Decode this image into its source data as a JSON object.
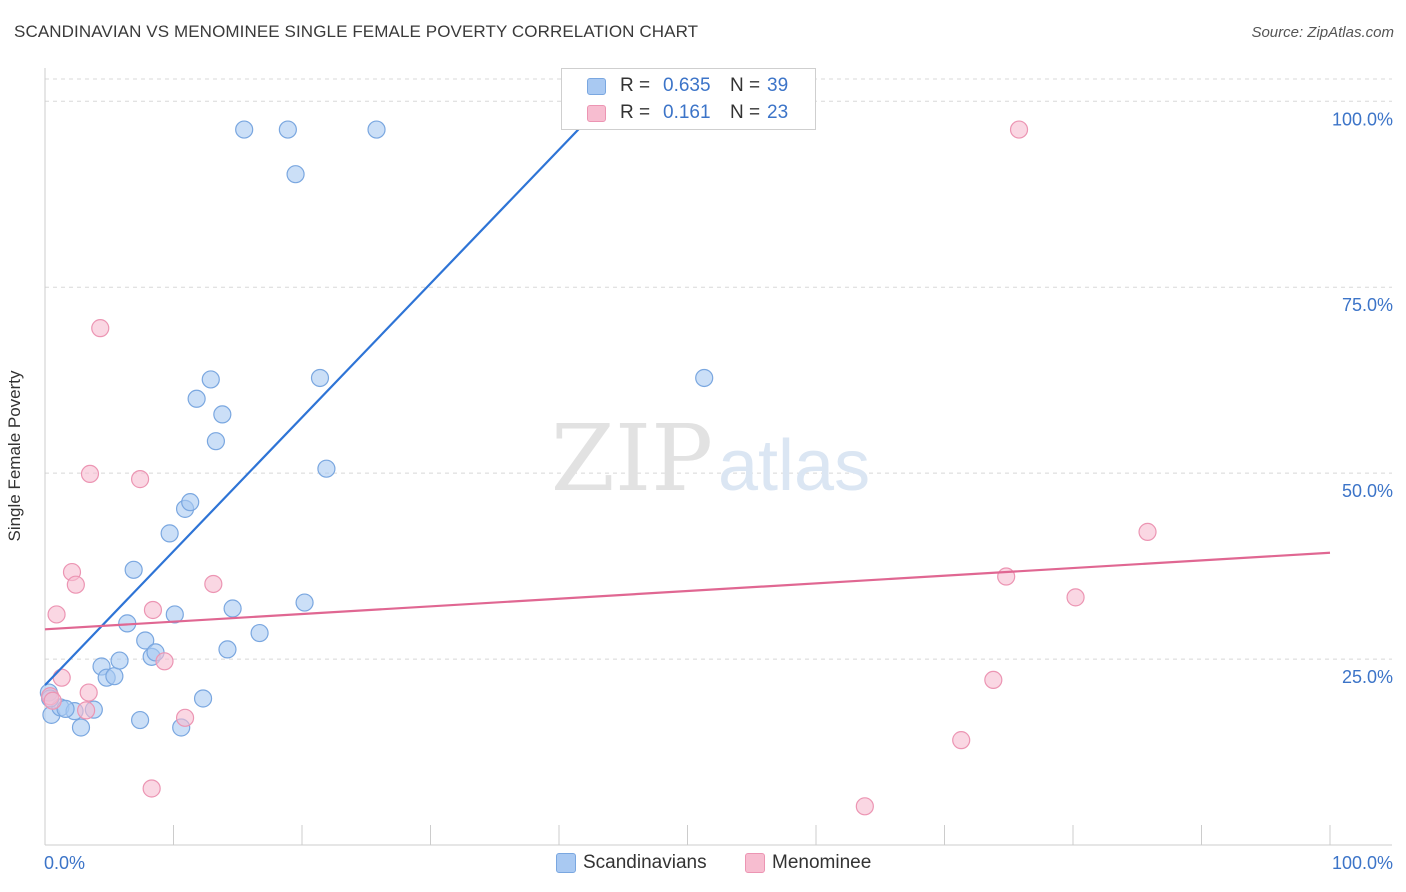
{
  "header": {
    "title": "SCANDINAVIAN VS MENOMINEE SINGLE FEMALE POVERTY CORRELATION CHART",
    "source": "Source: ZipAtlas.com"
  },
  "watermark": {
    "zip": "ZIP",
    "atlas": "atlas"
  },
  "stats": {
    "scandinavian": {
      "r_label": "R =",
      "r_value": "0.635",
      "n_label": "N =",
      "n_value": "39"
    },
    "menominee": {
      "r_label": "R =",
      "r_value": "0.161",
      "n_label": "N =",
      "n_value": "23"
    }
  },
  "legend": {
    "scandinavian": "Scandinavians",
    "menominee": "Menominee"
  },
  "colors": {
    "scandinavian_fill": "#a9c9f2",
    "scandinavian_stroke": "#7aa7e0",
    "scandinavian_line": "#2e74d6",
    "menominee_fill": "#f7bdd0",
    "menominee_stroke": "#ec95b3",
    "menominee_line": "#e06792",
    "axis_text": "#3c74c8",
    "grid": "#d8d8d8"
  },
  "chart_data": {
    "type": "scatter",
    "title": "SCANDINAVIAN VS MENOMINEE SINGLE FEMALE POVERTY CORRELATION CHART",
    "xlabel": "",
    "ylabel": "Single Female Poverty",
    "xlim": [
      0,
      100
    ],
    "ylim": [
      0,
      103
    ],
    "x_tick_labels": [
      "0.0%",
      "100.0%"
    ],
    "y_ticks": [
      25,
      50,
      75,
      100
    ],
    "y_tick_labels": [
      "25.0%",
      "50.0%",
      "75.0%",
      "100.0%"
    ],
    "grid": true,
    "series": [
      {
        "name": "Scandinavians",
        "r": 0.635,
        "n": 39,
        "trend": {
          "x0": 0,
          "y0": 21.5,
          "x1": 42.5,
          "y1": 98
        },
        "points": [
          [
            0.3,
            20.5
          ],
          [
            0.5,
            17.5
          ],
          [
            1.2,
            18.5
          ],
          [
            2.3,
            18.0
          ],
          [
            2.8,
            15.8
          ],
          [
            3.8,
            18.2
          ],
          [
            4.4,
            24.0
          ],
          [
            4.8,
            22.5
          ],
          [
            5.4,
            22.7
          ],
          [
            5.8,
            24.8
          ],
          [
            6.4,
            29.8
          ],
          [
            6.9,
            37.0
          ],
          [
            7.4,
            16.8
          ],
          [
            7.8,
            27.5
          ],
          [
            8.3,
            25.3
          ],
          [
            8.6,
            25.9
          ],
          [
            9.7,
            41.9
          ],
          [
            10.1,
            31.0
          ],
          [
            10.6,
            15.8
          ],
          [
            10.9,
            45.2
          ],
          [
            11.3,
            46.1
          ],
          [
            11.8,
            60.0
          ],
          [
            12.3,
            19.7
          ],
          [
            12.9,
            62.6
          ],
          [
            13.3,
            54.3
          ],
          [
            13.8,
            57.9
          ],
          [
            14.2,
            26.3
          ],
          [
            14.6,
            31.8
          ],
          [
            15.5,
            96.2
          ],
          [
            16.7,
            28.5
          ],
          [
            18.9,
            96.2
          ],
          [
            19.5,
            90.2
          ],
          [
            20.2,
            32.6
          ],
          [
            21.4,
            62.8
          ],
          [
            21.9,
            50.6
          ],
          [
            25.8,
            96.2
          ],
          [
            51.3,
            62.8
          ],
          [
            0.4,
            19.7
          ],
          [
            1.6,
            18.3
          ]
        ]
      },
      {
        "name": "Menominee",
        "r": 0.161,
        "n": 23,
        "trend": {
          "x0": 0,
          "y0": 29.0,
          "x1": 100,
          "y1": 39.3
        },
        "points": [
          [
            0.4,
            20.0
          ],
          [
            0.9,
            31.0
          ],
          [
            1.3,
            22.5
          ],
          [
            2.1,
            36.7
          ],
          [
            2.4,
            35.0
          ],
          [
            3.2,
            18.1
          ],
          [
            3.4,
            20.5
          ],
          [
            3.5,
            49.9
          ],
          [
            4.3,
            69.5
          ],
          [
            7.4,
            49.2
          ],
          [
            8.3,
            7.6
          ],
          [
            8.4,
            31.6
          ],
          [
            9.3,
            24.7
          ],
          [
            10.9,
            17.1
          ],
          [
            13.1,
            35.1
          ],
          [
            63.8,
            5.2
          ],
          [
            71.3,
            14.1
          ],
          [
            73.8,
            22.2
          ],
          [
            74.8,
            36.1
          ],
          [
            75.8,
            96.2
          ],
          [
            80.2,
            33.3
          ],
          [
            85.8,
            42.1
          ],
          [
            0.6,
            19.4
          ]
        ]
      }
    ]
  }
}
